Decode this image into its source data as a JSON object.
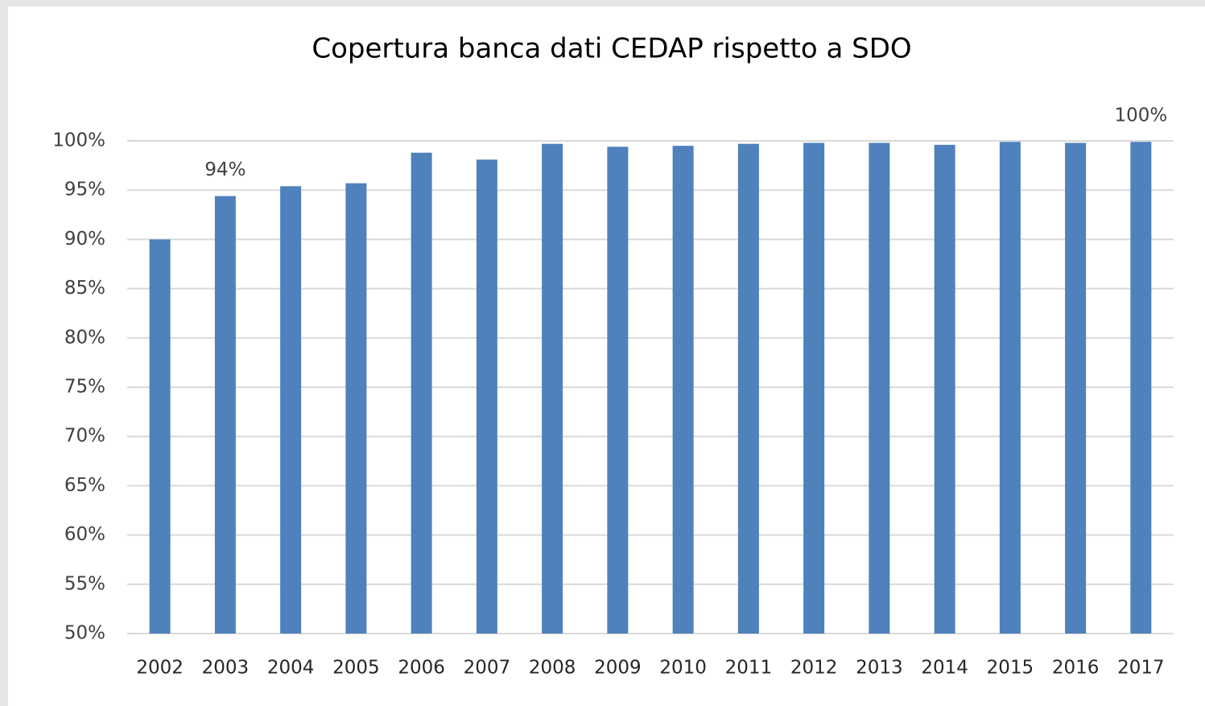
{
  "chart_data": {
    "type": "bar",
    "title": "Copertura banca dati CEDAP rispetto a SDO",
    "categories": [
      "2002",
      "2003",
      "2004",
      "2005",
      "2006",
      "2007",
      "2008",
      "2009",
      "2010",
      "2011",
      "2012",
      "2013",
      "2014",
      "2015",
      "2016",
      "2017"
    ],
    "values": [
      90.0,
      94.4,
      95.4,
      95.7,
      98.8,
      98.1,
      99.7,
      99.4,
      99.5,
      99.7,
      99.8,
      99.8,
      99.6,
      99.9,
      99.8,
      99.9
    ],
    "value_labels": [
      null,
      "94%",
      null,
      null,
      null,
      null,
      null,
      null,
      null,
      null,
      null,
      null,
      null,
      null,
      null,
      "100%"
    ],
    "color": "#4f81bd",
    "ylim": [
      50,
      100
    ],
    "yticks": [
      {
        "value": 50,
        "label": "50%"
      },
      {
        "value": 55,
        "label": "55%"
      },
      {
        "value": 60,
        "label": "60%"
      },
      {
        "value": 65,
        "label": "65%"
      },
      {
        "value": 70,
        "label": "70%"
      },
      {
        "value": 75,
        "label": "75%"
      },
      {
        "value": 80,
        "label": "80%"
      },
      {
        "value": 85,
        "label": "85%"
      },
      {
        "value": 90,
        "label": "90%"
      },
      {
        "value": 95,
        "label": "95%"
      },
      {
        "value": 100,
        "label": "100%"
      }
    ],
    "grid": true
  }
}
